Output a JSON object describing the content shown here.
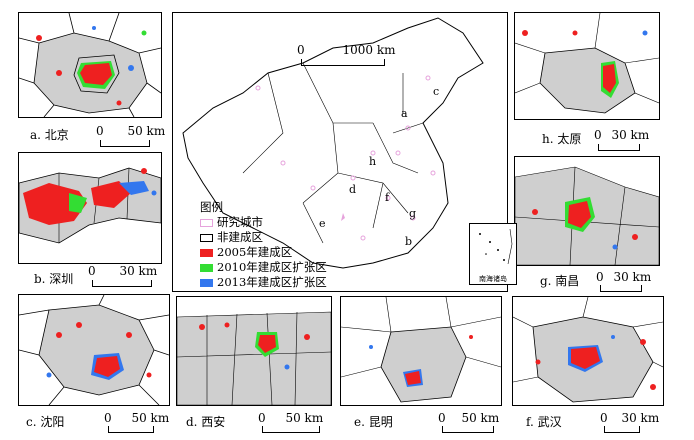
{
  "colors": {
    "study_city": "#e6a3dc",
    "non_built": "#ffffff",
    "built_2005": "#ee2020",
    "expand_2010": "#33dd33",
    "expand_2013": "#3377ee",
    "region_fill": "#cfcfcf"
  },
  "main_map": {
    "scale_label": "1000 km",
    "scale_zero": "0",
    "inset_label": "南海诸岛",
    "legend": {
      "title": "图例",
      "items": [
        {
          "label": "研究城市",
          "color": "#e6a3dc",
          "style": "outline"
        },
        {
          "label": "非建成区",
          "color": "#ffffff",
          "style": "outline"
        },
        {
          "label": "2005年建成区",
          "color": "#ee2020",
          "style": "fill"
        },
        {
          "label": "2010年建成区扩张区",
          "color": "#33dd33",
          "style": "fill"
        },
        {
          "label": "2013年建成区扩张区",
          "color": "#3377ee",
          "style": "fill"
        }
      ]
    },
    "city_letters": [
      "a",
      "b",
      "c",
      "d",
      "e",
      "f",
      "g",
      "h"
    ]
  },
  "panels": [
    {
      "id": "a",
      "label": "a. 北京",
      "scale_zero": "0",
      "scale_text": "50 km"
    },
    {
      "id": "b",
      "label": "b. 深圳",
      "scale_zero": "0",
      "scale_text": "30 km"
    },
    {
      "id": "c",
      "label": "c. 沈阳",
      "scale_zero": "0",
      "scale_text": "50 km"
    },
    {
      "id": "d",
      "label": "d. 西安",
      "scale_zero": "0",
      "scale_text": "50 km"
    },
    {
      "id": "e",
      "label": "e. 昆明",
      "scale_zero": "0",
      "scale_text": "50 km"
    },
    {
      "id": "f",
      "label": "f. 武汉",
      "scale_zero": "0",
      "scale_text": "30 km"
    },
    {
      "id": "g",
      "label": "g. 南昌",
      "scale_zero": "0",
      "scale_text": "30 km"
    },
    {
      "id": "h",
      "label": "h. 太原",
      "scale_zero": "0",
      "scale_text": "30 km"
    }
  ]
}
